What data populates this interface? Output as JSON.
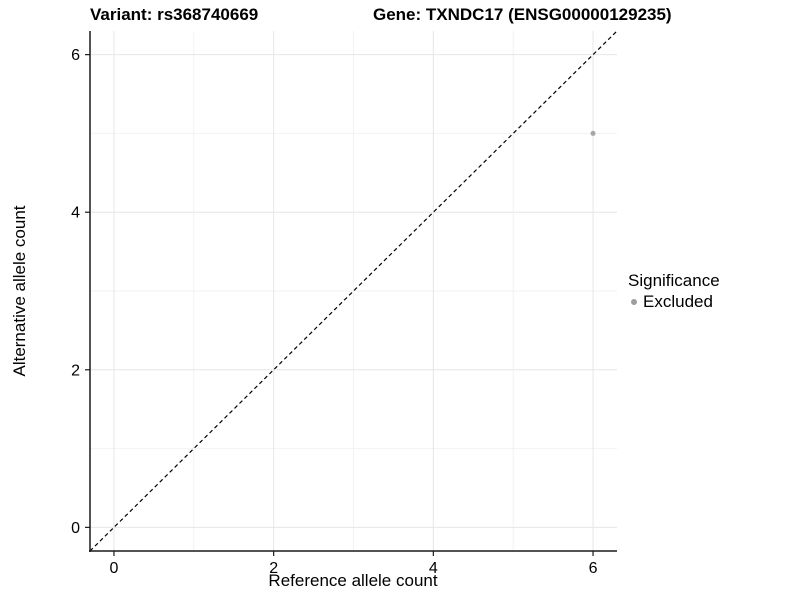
{
  "chart_data": {
    "type": "scatter",
    "title_left": "Variant: rs368740669",
    "title_right": "Gene: TXNDC17 (ENSG00000129235)",
    "xlabel": "Reference allele count",
    "ylabel": "Alternative allele count",
    "xlim": [
      -0.3,
      6.3
    ],
    "ylim": [
      -0.3,
      6.3
    ],
    "x_major_ticks": [
      0,
      2,
      4,
      6
    ],
    "y_major_ticks": [
      0,
      2,
      4,
      6
    ],
    "x_minor_ticks": [
      1,
      3,
      5
    ],
    "y_minor_ticks": [
      1,
      3,
      5
    ],
    "grid": "major+minor",
    "reference_line": {
      "slope": 1,
      "intercept": 0,
      "style": "dashed",
      "color": "#000000"
    },
    "series": [
      {
        "name": "Excluded",
        "color": "#a6a6a6",
        "point_radius": 2.5,
        "points": [
          {
            "x": 6,
            "y": 5
          }
        ]
      }
    ],
    "legend": {
      "title": "Significance",
      "position": "right",
      "items": [
        {
          "label": "Excluded",
          "color": "#9e9e9e"
        }
      ]
    },
    "colors": {
      "background": "#ffffff",
      "axis_line": "#1a1a1a",
      "tick_mark": "#1a1a1a",
      "grid_major": "#e6e6e6",
      "grid_minor": "#f2f2f2",
      "text": "#000000"
    }
  }
}
